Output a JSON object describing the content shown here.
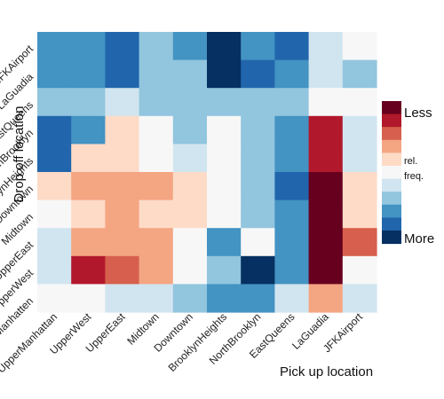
{
  "chart_data": {
    "type": "heatmap",
    "xlabel": "Pick up location",
    "ylabel": "Drop off location",
    "x_categories": [
      "UpperManhattan",
      "UpperWest",
      "UpperEast",
      "Midtown",
      "Downtown",
      "BrooklynHeights",
      "NorthBrooklyn",
      "EastQueens",
      "LaGuadia",
      "JFKAirport"
    ],
    "y_categories": [
      "JFKAirport",
      "LaGuadia",
      "EastQueens",
      "NorthBrooklyn",
      "BrooklynHeights",
      "Downtown",
      "Midtown",
      "UpperEast",
      "UpperWest",
      "UpperManhatten"
    ],
    "value_scale": "color level 1 = least frequent (dark red) to 11 = most frequent (dark blue)",
    "values": [
      [
        9,
        9,
        10,
        8,
        9,
        11,
        9,
        10,
        7,
        6
      ],
      [
        9,
        9,
        10,
        8,
        8,
        11,
        10,
        9,
        7,
        8
      ],
      [
        8,
        8,
        7,
        8,
        8,
        8,
        8,
        8,
        6,
        6
      ],
      [
        10,
        9,
        5,
        6,
        8,
        6,
        8,
        9,
        2,
        7
      ],
      [
        10,
        5,
        5,
        6,
        7,
        6,
        8,
        9,
        2,
        7
      ],
      [
        5,
        4,
        4,
        4,
        5,
        6,
        8,
        10,
        1,
        5
      ],
      [
        6,
        5,
        4,
        5,
        5,
        6,
        8,
        9,
        1,
        5
      ],
      [
        7,
        4,
        4,
        4,
        6,
        9,
        6,
        9,
        1,
        3
      ],
      [
        7,
        2,
        3,
        4,
        6,
        8,
        11,
        9,
        1,
        6
      ],
      [
        6,
        6,
        7,
        7,
        8,
        9,
        9,
        7,
        4,
        7
      ]
    ],
    "colors": [
      "#67001f",
      "#b2182b",
      "#d6604d",
      "#f4a582",
      "#fddbc7",
      "#f7f7f7",
      "#d1e5f0",
      "#92c5de",
      "#4393c3",
      "#2166ac",
      "#053061"
    ],
    "legend": {
      "top_label": "Less",
      "middle_label_1": "rel.",
      "middle_label_2": "freq.",
      "bottom_label": "More",
      "placement": "right"
    }
  }
}
